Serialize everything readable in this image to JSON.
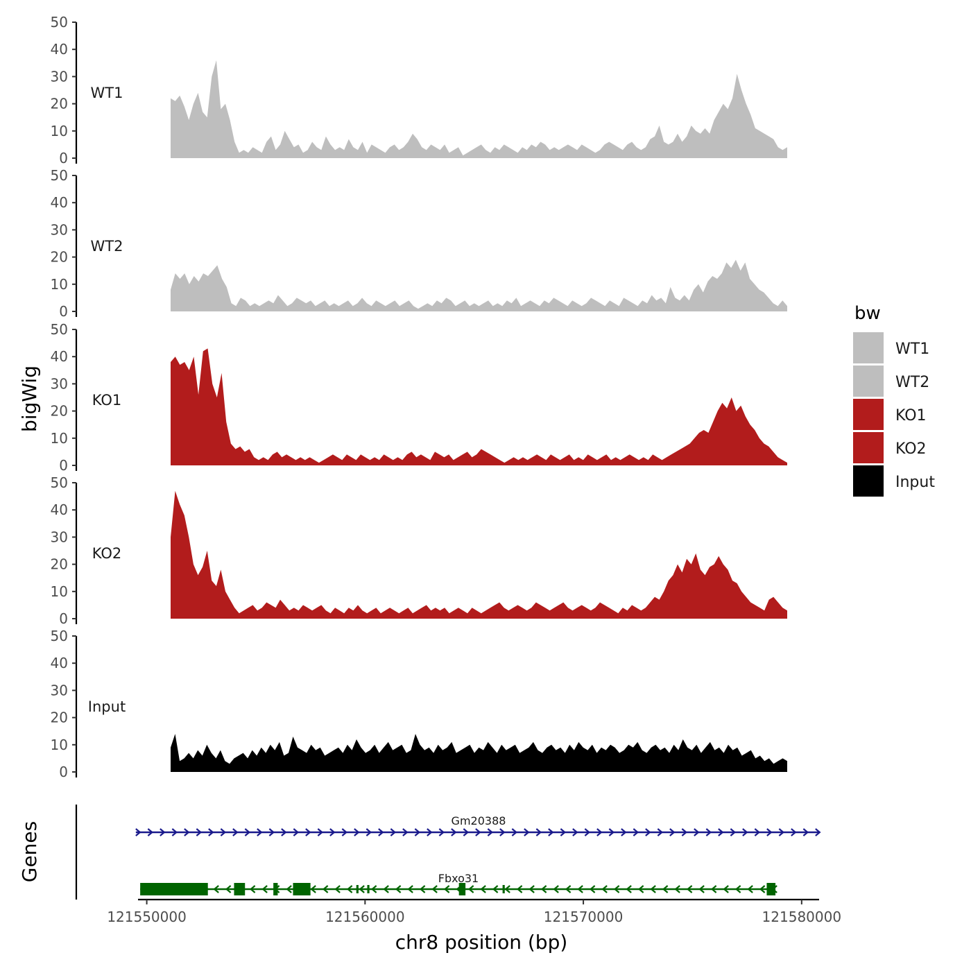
{
  "chart_data": {
    "type": "area",
    "ylabel": "bigWig",
    "xlabel": "chr8 position (bp)",
    "x_range": [
      121549600,
      121580800
    ],
    "ylim": [
      0,
      50
    ],
    "y_ticks": [
      "0",
      "10",
      "20",
      "30",
      "40",
      "50"
    ],
    "x_ticks": [
      {
        "value": 121550000,
        "label": "121550000"
      },
      {
        "value": 121560000,
        "label": "121560000"
      },
      {
        "value": 121570000,
        "label": "121570000"
      },
      {
        "value": 121580000,
        "label": "121580000"
      }
    ],
    "legend": {
      "title": "bw",
      "position": "right",
      "entries": [
        {
          "label": "WT1",
          "color": "#bebebe"
        },
        {
          "label": "WT2",
          "color": "#bebebe"
        },
        {
          "label": "KO1",
          "color": "#b21c1c"
        },
        {
          "label": "KO2",
          "color": "#b21c1c"
        },
        {
          "label": "Input",
          "color": "#000000"
        }
      ]
    },
    "series": [
      {
        "name": "WT1",
        "color": "#bebebe",
        "values": [
          22,
          21,
          23,
          19,
          14,
          20,
          24,
          17,
          15,
          30,
          36,
          18,
          20,
          14,
          6,
          2,
          3,
          2,
          4,
          3,
          2,
          6,
          8,
          3,
          5,
          10,
          7,
          4,
          5,
          2,
          3,
          6,
          4,
          3,
          8,
          5,
          3,
          4,
          3,
          7,
          4,
          3,
          6,
          2,
          5,
          4,
          3,
          2,
          4,
          5,
          3,
          4,
          6,
          9,
          7,
          4,
          3,
          5,
          4,
          3,
          5,
          2,
          3,
          4,
          1,
          2,
          3,
          4,
          5,
          3,
          2,
          4,
          3,
          5,
          4,
          3,
          2,
          4,
          3,
          5,
          4,
          6,
          5,
          3,
          4,
          3,
          4,
          5,
          4,
          3,
          5,
          4,
          3,
          2,
          3,
          5,
          6,
          5,
          4,
          3,
          5,
          6,
          4,
          3,
          4,
          7,
          8,
          12,
          6,
          5,
          6,
          9,
          6,
          8,
          12,
          10,
          9,
          11,
          9,
          14,
          17,
          20,
          18,
          22,
          31,
          25,
          20,
          16,
          11,
          10,
          9,
          8,
          7,
          4,
          3,
          4
        ]
      },
      {
        "name": "WT2",
        "color": "#bebebe",
        "values": [
          8,
          14,
          12,
          14,
          10,
          13,
          11,
          14,
          13,
          15,
          17,
          12,
          9,
          3,
          2,
          5,
          4,
          2,
          3,
          2,
          3,
          4,
          3,
          6,
          4,
          2,
          3,
          5,
          4,
          3,
          4,
          2,
          3,
          4,
          2,
          3,
          2,
          3,
          4,
          2,
          3,
          5,
          3,
          2,
          4,
          3,
          2,
          3,
          4,
          2,
          3,
          4,
          2,
          1,
          2,
          3,
          2,
          4,
          3,
          5,
          4,
          2,
          3,
          4,
          2,
          3,
          2,
          3,
          4,
          2,
          3,
          2,
          4,
          3,
          5,
          2,
          3,
          4,
          3,
          2,
          4,
          3,
          5,
          4,
          3,
          2,
          4,
          3,
          2,
          3,
          5,
          4,
          3,
          2,
          4,
          3,
          2,
          5,
          4,
          3,
          2,
          4,
          3,
          6,
          4,
          5,
          3,
          9,
          5,
          4,
          6,
          4,
          8,
          10,
          7,
          11,
          13,
          12,
          14,
          18,
          16,
          19,
          15,
          18,
          12,
          10,
          8,
          7,
          5,
          3,
          2,
          4,
          2
        ]
      },
      {
        "name": "KO1",
        "color": "#b21c1c",
        "values": [
          38,
          40,
          37,
          38,
          35,
          40,
          26,
          42,
          43,
          30,
          25,
          34,
          16,
          8,
          6,
          7,
          5,
          6,
          3,
          2,
          3,
          2,
          4,
          5,
          3,
          4,
          3,
          2,
          3,
          2,
          3,
          2,
          1,
          2,
          3,
          4,
          3,
          2,
          4,
          3,
          2,
          4,
          3,
          2,
          3,
          2,
          4,
          3,
          2,
          3,
          2,
          4,
          5,
          3,
          4,
          3,
          2,
          5,
          4,
          3,
          4,
          2,
          3,
          4,
          5,
          3,
          4,
          6,
          5,
          4,
          3,
          2,
          1,
          2,
          3,
          2,
          3,
          2,
          3,
          4,
          3,
          2,
          4,
          3,
          2,
          3,
          4,
          2,
          3,
          2,
          4,
          3,
          2,
          3,
          4,
          2,
          3,
          2,
          3,
          4,
          3,
          2,
          3,
          2,
          4,
          3,
          2,
          3,
          4,
          5,
          6,
          7,
          8,
          10,
          12,
          13,
          12,
          16,
          20,
          23,
          21,
          25,
          20,
          22,
          18,
          15,
          13,
          10,
          8,
          7,
          5,
          3,
          2,
          1
        ]
      },
      {
        "name": "KO2",
        "color": "#b21c1c",
        "values": [
          30,
          47,
          42,
          38,
          30,
          20,
          16,
          19,
          25,
          14,
          12,
          18,
          10,
          7,
          4,
          2,
          3,
          4,
          5,
          3,
          4,
          6,
          5,
          4,
          7,
          5,
          3,
          4,
          3,
          5,
          4,
          3,
          4,
          5,
          3,
          2,
          4,
          3,
          2,
          4,
          3,
          5,
          3,
          2,
          3,
          4,
          2,
          3,
          4,
          3,
          2,
          3,
          4,
          2,
          3,
          4,
          5,
          3,
          4,
          3,
          4,
          2,
          3,
          4,
          3,
          2,
          4,
          3,
          2,
          3,
          4,
          5,
          6,
          4,
          3,
          4,
          5,
          4,
          3,
          4,
          6,
          5,
          4,
          3,
          4,
          5,
          6,
          4,
          3,
          4,
          5,
          4,
          3,
          4,
          6,
          5,
          4,
          3,
          2,
          4,
          3,
          5,
          4,
          3,
          4,
          6,
          8,
          7,
          10,
          14,
          16,
          20,
          17,
          22,
          20,
          24,
          18,
          16,
          19,
          20,
          23,
          20,
          18,
          14,
          13,
          10,
          8,
          6,
          5,
          4,
          3,
          7,
          8,
          6,
          4,
          3
        ]
      },
      {
        "name": "Input",
        "color": "#000000",
        "values": [
          9,
          14,
          4,
          5,
          7,
          5,
          8,
          6,
          10,
          7,
          5,
          8,
          4,
          3,
          5,
          6,
          7,
          5,
          8,
          6,
          9,
          7,
          10,
          8,
          11,
          6,
          7,
          13,
          9,
          8,
          7,
          10,
          8,
          9,
          6,
          7,
          8,
          9,
          7,
          10,
          8,
          12,
          9,
          7,
          8,
          10,
          7,
          9,
          11,
          8,
          9,
          10,
          7,
          8,
          14,
          10,
          8,
          9,
          7,
          10,
          8,
          9,
          11,
          7,
          8,
          9,
          10,
          7,
          9,
          8,
          11,
          9,
          7,
          10,
          8,
          9,
          10,
          7,
          8,
          9,
          11,
          8,
          7,
          9,
          10,
          8,
          9,
          7,
          10,
          8,
          11,
          9,
          8,
          10,
          7,
          9,
          8,
          10,
          9,
          7,
          8,
          10,
          9,
          11,
          8,
          7,
          9,
          10,
          8,
          9,
          7,
          10,
          8,
          12,
          9,
          8,
          10,
          7,
          9,
          11,
          8,
          9,
          7,
          10,
          8,
          9,
          6,
          7,
          8,
          5,
          6,
          4,
          5,
          3,
          4,
          5,
          4
        ]
      }
    ],
    "genes_track": {
      "label": "Genes",
      "genes": [
        {
          "name": "Gm20388",
          "color": "#1a1a8c",
          "strand": "+",
          "start": 121549500,
          "end": 121580800,
          "exons": []
        },
        {
          "name": "Fbxo31",
          "color": "#006400",
          "strand": "-",
          "start": 121549700,
          "end": 121578800,
          "exons": [
            [
              121549700,
              121552800
            ],
            [
              121554000,
              121554500
            ],
            [
              121555800,
              121556000
            ],
            [
              121556700,
              121557500
            ],
            [
              121559600,
              121559700
            ],
            [
              121560100,
              121560200
            ],
            [
              121564300,
              121564600
            ],
            [
              121566300,
              121566400
            ],
            [
              121578400,
              121578800
            ]
          ]
        }
      ]
    }
  }
}
